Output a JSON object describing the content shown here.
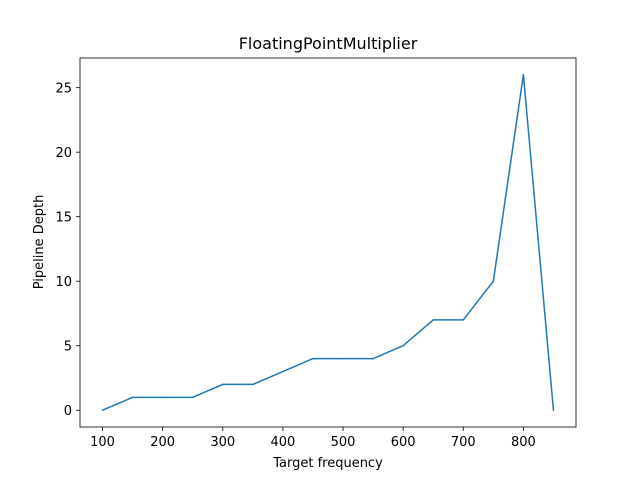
{
  "chart_data": {
    "type": "line",
    "title": "FloatingPointMultiplier",
    "xlabel": "Target frequency",
    "ylabel": "Pipeline Depth",
    "x": [
      100,
      150,
      200,
      250,
      300,
      350,
      400,
      450,
      500,
      550,
      600,
      650,
      700,
      750,
      800,
      850
    ],
    "series": [
      {
        "values": [
          0,
          1,
          1,
          1,
          2,
          2,
          3,
          4,
          4,
          4,
          5,
          7,
          7,
          10,
          26,
          0
        ],
        "color": "#1f77b4"
      }
    ],
    "xticks": [
      100,
      200,
      300,
      400,
      500,
      600,
      700,
      800
    ],
    "yticks": [
      0,
      5,
      10,
      15,
      20,
      25
    ],
    "xlim": [
      62.5,
      887.5
    ],
    "ylim": [
      -1.3,
      27.3
    ],
    "grid": false,
    "legend": "none"
  }
}
